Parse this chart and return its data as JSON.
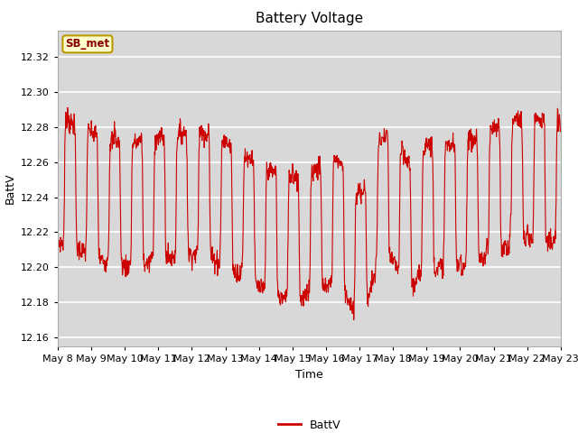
{
  "title": "Battery Voltage",
  "xlabel": "Time",
  "ylabel": "BattV",
  "ylim": [
    12.155,
    12.335
  ],
  "yticks": [
    12.16,
    12.18,
    12.2,
    12.22,
    12.24,
    12.26,
    12.28,
    12.3,
    12.32
  ],
  "line_color": "#cc0000",
  "line_width": 0.8,
  "background_color": "#ffffff",
  "plot_bg_color": "#d8d8d8",
  "grid_color": "#ffffff",
  "legend_label": "BattV",
  "label_box_text": "SB_met",
  "label_box_facecolor": "#ffffcc",
  "label_box_edgecolor": "#bb9900",
  "label_box_textcolor": "#880000",
  "title_fontsize": 11,
  "axis_fontsize": 9,
  "tick_fontsize": 8,
  "xlim": [
    8,
    23
  ]
}
